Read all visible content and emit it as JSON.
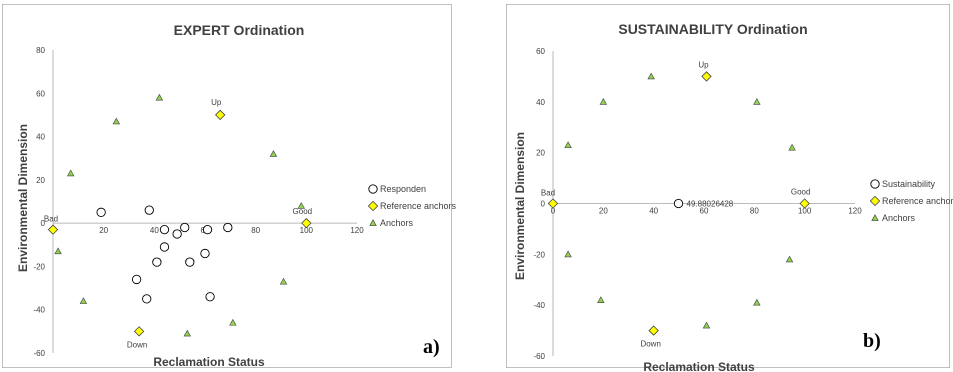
{
  "chart_data": [
    {
      "type": "scatter",
      "title": "EXPERT Ordination",
      "xlabel": "Reclamation Status",
      "ylabel": "Environmental Dimension",
      "xlim": [
        0,
        120
      ],
      "ylim": [
        -60,
        80
      ],
      "xticks": [
        20,
        40,
        60,
        80,
        100,
        120
      ],
      "yticks": [
        80,
        60,
        40,
        20,
        0,
        -20,
        -40,
        -60
      ],
      "xtick_labels": [
        "20",
        "40",
        "60",
        "80",
        "100",
        "120"
      ],
      "ytick_labels": [
        "80",
        "60",
        "40",
        "20",
        "0",
        "-20",
        "-40",
        "-60"
      ],
      "panel_label": "a)",
      "legend_position": "right",
      "series": [
        {
          "name": "Responden",
          "marker": "circle",
          "color": "#ffffff",
          "points": [
            {
              "x": 19,
              "y": 5
            },
            {
              "x": 38,
              "y": 6
            },
            {
              "x": 44,
              "y": -3
            },
            {
              "x": 44,
              "y": -11
            },
            {
              "x": 49,
              "y": -5
            },
            {
              "x": 52,
              "y": -2
            },
            {
              "x": 54,
              "y": -18
            },
            {
              "x": 41,
              "y": -18
            },
            {
              "x": 60,
              "y": -14
            },
            {
              "x": 61,
              "y": -3
            },
            {
              "x": 62,
              "y": -34
            },
            {
              "x": 69,
              "y": -2
            },
            {
              "x": 33,
              "y": -26
            },
            {
              "x": 37,
              "y": -35
            }
          ]
        },
        {
          "name": "Reference anchors",
          "marker": "diamond",
          "color": "#ffff00",
          "points": [
            {
              "x": 0,
              "y": -3,
              "label": "Bad"
            },
            {
              "x": 100,
              "y": 0,
              "label": "Good"
            },
            {
              "x": 66,
              "y": 50,
              "label": "Up"
            },
            {
              "x": 34,
              "y": -50,
              "label": "Down"
            }
          ]
        },
        {
          "name": "Anchors",
          "marker": "triangle",
          "color": "#92d050",
          "points": [
            {
              "x": 7,
              "y": 23
            },
            {
              "x": 25,
              "y": 47
            },
            {
              "x": 42,
              "y": 58
            },
            {
              "x": 87,
              "y": 32
            },
            {
              "x": 98,
              "y": 8
            },
            {
              "x": 2,
              "y": -13
            },
            {
              "x": 12,
              "y": -36
            },
            {
              "x": 53,
              "y": -51
            },
            {
              "x": 71,
              "y": -46
            },
            {
              "x": 91,
              "y": -27
            }
          ]
        }
      ]
    },
    {
      "type": "scatter",
      "title": "SUSTAINABILITY Ordination",
      "xlabel": "Reclamation Status",
      "ylabel": "Environmental Dimension",
      "xlim": [
        0,
        120
      ],
      "ylim": [
        -60,
        60
      ],
      "xticks": [
        0,
        20,
        40,
        60,
        80,
        100,
        120
      ],
      "yticks": [
        60,
        40,
        20,
        0,
        -20,
        -40,
        -60
      ],
      "xtick_labels": [
        "0",
        "20",
        "40",
        "60",
        "80",
        "100",
        "120"
      ],
      "ytick_labels": [
        "60",
        "40",
        "20",
        "0",
        "-20",
        "-40",
        "-60"
      ],
      "panel_label": "b)",
      "legend_position": "right",
      "series": [
        {
          "name": "Sustainability",
          "marker": "circle",
          "color": "#ffffff",
          "points": [
            {
              "x": 49.88026428,
              "y": 0,
              "label": "49.88026428"
            }
          ]
        },
        {
          "name": "Reference anchors",
          "marker": "diamond",
          "color": "#ffff00",
          "points": [
            {
              "x": 0,
              "y": 0,
              "label": "Bad"
            },
            {
              "x": 100,
              "y": 0,
              "label": "Good"
            },
            {
              "x": 61,
              "y": 50,
              "label": "Up"
            },
            {
              "x": 40,
              "y": -50,
              "label": "Down"
            }
          ]
        },
        {
          "name": "Anchors",
          "marker": "triangle",
          "color": "#92d050",
          "points": [
            {
              "x": 6,
              "y": 23
            },
            {
              "x": 20,
              "y": 40
            },
            {
              "x": 39,
              "y": 50
            },
            {
              "x": 81,
              "y": 40
            },
            {
              "x": 95,
              "y": 22
            },
            {
              "x": 6,
              "y": -20
            },
            {
              "x": 19,
              "y": -38
            },
            {
              "x": 61,
              "y": -48
            },
            {
              "x": 81,
              "y": -39
            },
            {
              "x": 94,
              "y": -22
            }
          ]
        }
      ]
    }
  ]
}
